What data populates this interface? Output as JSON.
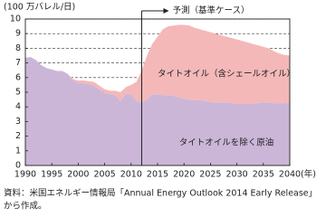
{
  "chart_data": {
    "type": "stacked-area",
    "y_label": "(100 万バレル/日)",
    "x_unit": "(年)",
    "x": [
      1990,
      1991,
      1992,
      1993,
      1994,
      1995,
      1996,
      1997,
      1998,
      1999,
      2000,
      2001,
      2002,
      2003,
      2004,
      2005,
      2006,
      2007,
      2008,
      2009,
      2010,
      2011,
      2012,
      2013,
      2014,
      2015,
      2016,
      2017,
      2018,
      2019,
      2020,
      2021,
      2022,
      2023,
      2024,
      2025,
      2026,
      2027,
      2028,
      2029,
      2030,
      2031,
      2032,
      2033,
      2034,
      2035,
      2036,
      2037,
      2038,
      2039,
      2040
    ],
    "series": [
      {
        "name": "タイトオイルを除く原油",
        "color": "#cbb6d8",
        "values": [
          7.35,
          7.4,
          7.2,
          6.85,
          6.65,
          6.55,
          6.45,
          6.45,
          6.25,
          5.8,
          5.65,
          5.6,
          5.55,
          5.45,
          5.2,
          4.95,
          4.85,
          4.8,
          4.4,
          4.9,
          4.85,
          4.4,
          4.3,
          4.5,
          4.85,
          4.85,
          4.8,
          4.8,
          4.75,
          4.65,
          4.55,
          4.5,
          4.45,
          4.45,
          4.4,
          4.35,
          4.3,
          4.3,
          4.3,
          4.25,
          4.2,
          4.2,
          4.2,
          4.25,
          4.25,
          4.3,
          4.3,
          4.25,
          4.25,
          4.25,
          4.3
        ]
      },
      {
        "name": "タイトオイル（含シェールオイル）",
        "color": "#f4b8b8",
        "values": [
          0,
          0,
          0,
          0,
          0,
          0,
          0,
          0,
          0,
          0.1,
          0.15,
          0.2,
          0.2,
          0.25,
          0.25,
          0.25,
          0.25,
          0.3,
          0.6,
          0.45,
          0.65,
          1.3,
          2.2,
          3.0,
          3.45,
          3.95,
          4.5,
          4.7,
          4.8,
          4.95,
          5.05,
          5.05,
          4.95,
          4.85,
          4.8,
          4.75,
          4.7,
          4.6,
          4.5,
          4.45,
          4.4,
          4.3,
          4.2,
          4.05,
          3.95,
          3.8,
          3.7,
          3.55,
          3.4,
          3.3,
          3.2
        ]
      }
    ],
    "forecast_start": 2012,
    "forecast_label": "予測（基準ケース）",
    "xlim": [
      1990,
      2040
    ],
    "xticks": [
      1990,
      1995,
      2000,
      2005,
      2010,
      2015,
      2020,
      2025,
      2030,
      2035,
      2040
    ],
    "ylim": [
      0,
      10
    ],
    "yticks": [
      0,
      1,
      2,
      3,
      4,
      5,
      6,
      7,
      8,
      9,
      10
    ],
    "grid": true,
    "source": [
      "資料：米国エネルギー情報局「Annual Energy Outlook 2014 Early Release」",
      "から作成。"
    ]
  }
}
